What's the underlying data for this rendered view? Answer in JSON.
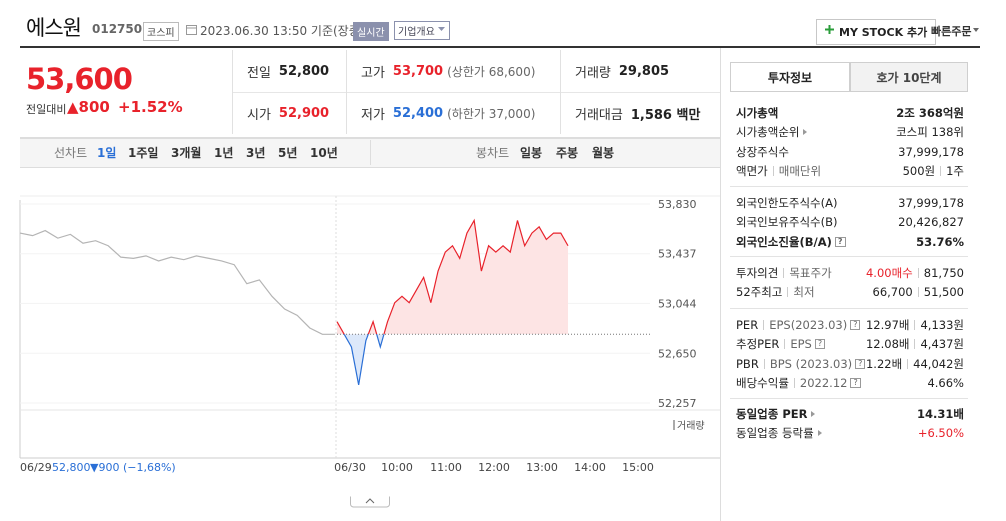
{
  "header": {
    "name": "에스원",
    "code": "012750",
    "market": "코스피",
    "datetime": "2023.06.30 13:50 기준(장중)",
    "realtime": "실시간",
    "company_overview": "기업개요",
    "my_stock": "MY STOCK 추가",
    "quick_order": "빠른주문"
  },
  "quote": {
    "price": "53,600",
    "change_label": "전일대비",
    "change": "▲800",
    "change_rate": "+1.52%",
    "rows": [
      [
        {
          "label": "전일",
          "value": "52,800"
        },
        {
          "label": "고가",
          "value": "53,700",
          "note": "(상한가 68,600)"
        },
        {
          "label": "거래량",
          "value": "29,805"
        }
      ],
      [
        {
          "label": "시가",
          "value": "52,900"
        },
        {
          "label": "저가",
          "value": "52,400",
          "note": "(하한가 37,000)"
        },
        {
          "label": "거래대금",
          "value": "1,586 백만"
        }
      ]
    ]
  },
  "toolbar": {
    "line_chart": "선차트",
    "periods": [
      "1일",
      "1주일",
      "3개월",
      "1년",
      "3년",
      "5년",
      "10년"
    ],
    "candle_chart": "봉차트",
    "candle_periods": [
      "일봉",
      "주봉",
      "월봉"
    ]
  },
  "intraday": {
    "ylim": [
      52257,
      53830
    ],
    "yticks": [
      {
        "value": 53830,
        "label": "53,830"
      },
      {
        "value": 53437,
        "label": "53,437"
      },
      {
        "value": 53044,
        "label": "53,044"
      },
      {
        "value": 52650,
        "label": "52,650"
      },
      {
        "value": 52257,
        "label": "52,257"
      }
    ],
    "reference": 52800,
    "prev_day": {
      "color": "#b4b4b4",
      "values": [
        53600,
        53580,
        53620,
        53560,
        53590,
        53520,
        53540,
        53500,
        53410,
        53400,
        53420,
        53380,
        53410,
        53390,
        53420,
        53400,
        53380,
        53350,
        53200,
        53230,
        53100,
        53000,
        52950,
        52850,
        52800,
        52800
      ]
    },
    "today": {
      "up_color": "#e8222b",
      "down_color": "#2a6fd6",
      "values": [
        52900,
        52800,
        52700,
        52400,
        52750,
        52900,
        52700,
        52900,
        53050,
        53100,
        53050,
        53150,
        53250,
        53050,
        53300,
        53450,
        53500,
        53400,
        53600,
        53700,
        53300,
        53500,
        53450,
        53500,
        53450,
        53700,
        53500,
        53600,
        53650,
        53550,
        53600,
        53600,
        53500
      ]
    },
    "volume_label": "거래량",
    "prev_summary": [
      "06/29",
      "52,800",
      "▼900 (−1,68%)"
    ],
    "xlabels": [
      "06/30",
      "10:00",
      "11:00",
      "12:00",
      "13:00",
      "14:00",
      "15:00"
    ]
  },
  "investment_info": {
    "tabs": [
      "투자정보",
      "호가 10단계"
    ],
    "groups": [
      [
        {
          "label": [
            "시가총액"
          ],
          "value": [
            "2조 368억원"
          ]
        },
        {
          "label": [
            "시가총액순위"
          ],
          "value": [
            "코스피 138위"
          ]
        },
        {
          "label": [
            "상장주식수"
          ],
          "value": [
            "37,999,178"
          ]
        },
        {
          "label": [
            "액면가",
            "매매단위"
          ],
          "value": [
            "500원",
            "1주"
          ]
        }
      ],
      [
        {
          "label": [
            "외국인한도주식수(A)"
          ],
          "value": [
            "37,999,178"
          ]
        },
        {
          "label": [
            "외국인보유주식수(B)"
          ],
          "value": [
            "20,426,827"
          ]
        },
        {
          "label": [
            "외국인소진율(B/A)"
          ],
          "help": "?",
          "value": [
            "53.76%"
          ]
        }
      ],
      [
        {
          "label": [
            "투자의견",
            "목표주가"
          ],
          "value": [
            "4.00매수",
            "81,750"
          ]
        },
        {
          "label": [
            "52주최고",
            "최저"
          ],
          "value": [
            "66,700",
            "51,500"
          ]
        }
      ],
      [
        {
          "label": [
            "PER",
            "EPS(2023.03)"
          ],
          "help": "?",
          "value": [
            "12.97배",
            "4,133원"
          ]
        },
        {
          "label": [
            "추정PER",
            "EPS"
          ],
          "help": "?",
          "value": [
            "12.08배",
            "4,437원"
          ]
        },
        {
          "label": [
            "PBR",
            "BPS (2023.03)"
          ],
          "help": "?",
          "value": [
            "1.22배",
            "44,042원"
          ]
        },
        {
          "label": [
            "배당수익률",
            "2022.12"
          ],
          "help": "?",
          "value": [
            "4.66%"
          ]
        }
      ],
      [
        {
          "label": [
            "동일업종 PER"
          ],
          "value": [
            "14.31배"
          ]
        },
        {
          "label": [
            "동일업종 등락률"
          ],
          "value": [
            "+6.50%"
          ]
        }
      ]
    ]
  }
}
